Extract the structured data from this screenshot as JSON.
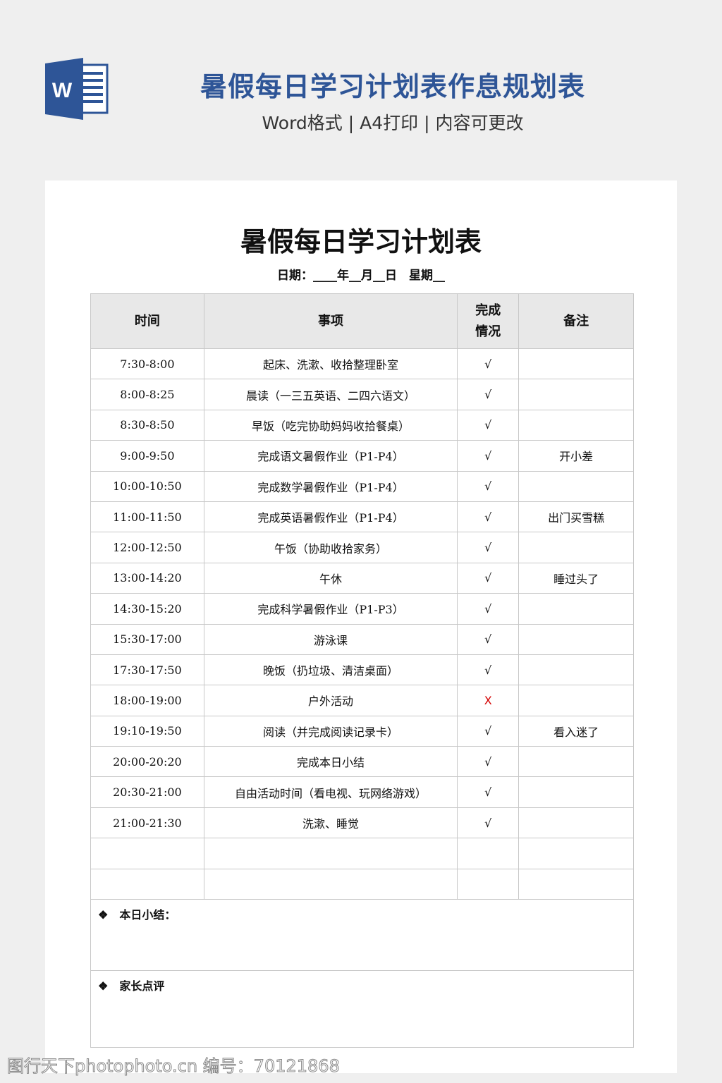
{
  "banner": {
    "title": "暑假每日学习计划表作息规划表",
    "subtitle": "Word格式 | A4打印 | 内容可更改",
    "brand_color": "#2e5597"
  },
  "document": {
    "title": "暑假每日学习计划表",
    "date_line": "日期：____年__月__日　星期__",
    "headers": [
      "时间",
      "事项",
      "完成情况",
      "备注"
    ],
    "rows": [
      [
        "7:30-8:00",
        "起床、洗漱、收拾整理卧室",
        "√",
        ""
      ],
      [
        "8:00-8:25",
        "晨读（一三五英语、二四六语文）",
        "√",
        ""
      ],
      [
        "8:30-8:50",
        "早饭（吃完协助妈妈收拾餐桌）",
        "√",
        ""
      ],
      [
        "9:00-9:50",
        "完成语文暑假作业（P1-P4）",
        "√",
        "开小差"
      ],
      [
        "10:00-10:50",
        "完成数学暑假作业（P1-P4）",
        "√",
        ""
      ],
      [
        "11:00-11:50",
        "完成英语暑假作业（P1-P4）",
        "√",
        "出门买雪糕"
      ],
      [
        "12:00-12:50",
        "午饭（协助收拾家务）",
        "√",
        ""
      ],
      [
        "13:00-14:20",
        "午休",
        "√",
        "睡过头了"
      ],
      [
        "14:30-15:20",
        "完成科学暑假作业（P1-P3）",
        "√",
        ""
      ],
      [
        "15:30-17:00",
        "游泳课",
        "√",
        ""
      ],
      [
        "17:30-17:50",
        "晚饭（扔垃圾、清洁桌面）",
        "√",
        ""
      ],
      [
        "18:00-19:00",
        "户外活动",
        "X",
        ""
      ],
      [
        "19:10-19:50",
        "阅读（并完成阅读记录卡）",
        "√",
        "看入迷了"
      ],
      [
        "20:00-20:20",
        "完成本日小结",
        "√",
        ""
      ],
      [
        "20:30-21:00",
        "自由活动时间（看电视、玩网络游戏）",
        "√",
        ""
      ],
      [
        "21:00-21:30",
        "洗漱、睡觉",
        "√",
        ""
      ],
      [
        "",
        "",
        "",
        ""
      ],
      [
        "",
        "",
        "",
        ""
      ]
    ],
    "summary_label": "本日小结：",
    "parent_label": "家长点评",
    "bullet": "❖"
  },
  "watermark": "图行天下photophoto.cn 编号：70121868"
}
